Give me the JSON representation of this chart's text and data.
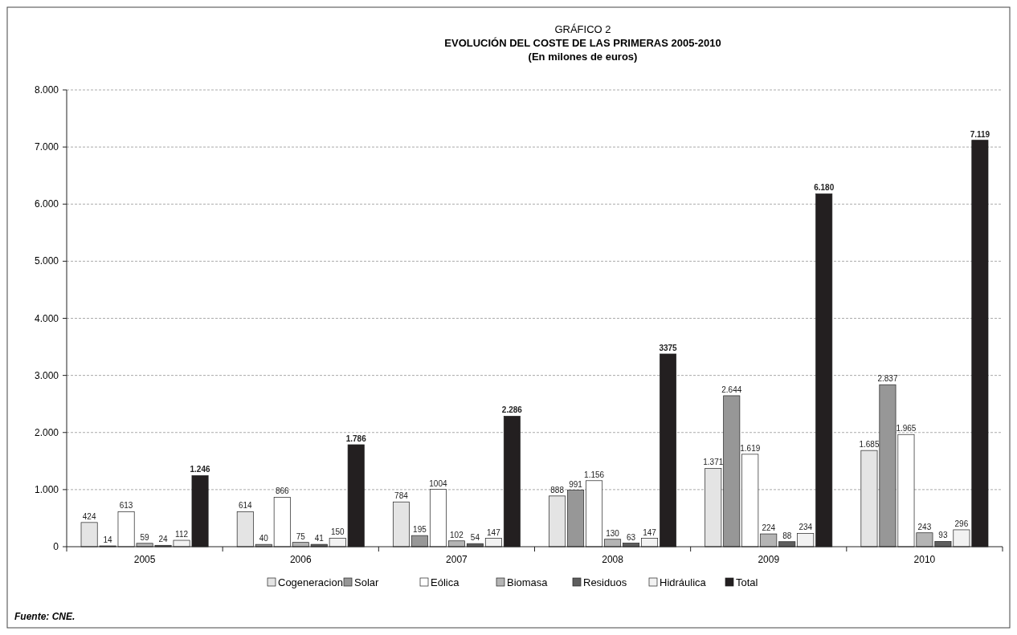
{
  "chart_data": {
    "type": "bar",
    "title": "GRÁFICO 2",
    "subtitle": "EVOLUCIÓN DEL COSTE DE LAS PRIMERAS 2005-2010\n(En milones de euros)",
    "categories": [
      "2005",
      "2006",
      "2007",
      "2008",
      "2009",
      "2010"
    ],
    "series": [
      {
        "name": "Cogeneracion",
        "color": "#e4e4e4",
        "values": [
          424,
          614,
          784,
          888,
          1371,
          1685
        ],
        "value_labels": [
          "424",
          "614",
          "784",
          "888",
          "1.371",
          "1.685"
        ]
      },
      {
        "name": "Solar",
        "color": "#979797",
        "values": [
          14,
          40,
          195,
          991,
          2644,
          2837
        ],
        "value_labels": [
          "14",
          "40",
          "195",
          "991",
          "2.644",
          "2.837"
        ]
      },
      {
        "name": "Eólica",
        "color": "#ffffff",
        "values": [
          613,
          866,
          1004,
          1156,
          1619,
          1965
        ],
        "value_labels": [
          "613",
          "866",
          "1004",
          "1.156",
          "1.619",
          "1.965"
        ]
      },
      {
        "name": "Biomasa",
        "color": "#b4b4b4",
        "values": [
          59,
          75,
          102,
          130,
          224,
          243
        ],
        "value_labels": [
          "59",
          "75",
          "102",
          "130",
          "224",
          "243"
        ]
      },
      {
        "name": "Residuos",
        "color": "#5e5e5e",
        "values": [
          24,
          41,
          54,
          63,
          88,
          93
        ],
        "value_labels": [
          "24",
          "41",
          "54",
          "63",
          "88",
          "93"
        ]
      },
      {
        "name": "Hidráulica",
        "color": "#f2f2f2",
        "values": [
          112,
          150,
          147,
          147,
          234,
          296
        ],
        "value_labels": [
          "112",
          "150",
          "147",
          "147",
          "234",
          "296"
        ]
      },
      {
        "name": "Total",
        "color": "#231f20",
        "values": [
          1246,
          1786,
          2286,
          3375,
          6180,
          7119
        ],
        "value_labels": [
          "1.246",
          "1.786",
          "2.286",
          "3375",
          "6.180",
          "7.119"
        ]
      }
    ],
    "ylim": [
      0,
      8000
    ],
    "yticks": [
      {
        "value": 0,
        "label": "0"
      },
      {
        "value": 1000,
        "label": "1.000"
      },
      {
        "value": 2000,
        "label": "2.000"
      },
      {
        "value": 3000,
        "label": "3.000"
      },
      {
        "value": 4000,
        "label": "4.000"
      },
      {
        "value": 5000,
        "label": "5.000"
      },
      {
        "value": 6000,
        "label": "6.000"
      },
      {
        "value": 7000,
        "label": "7.000"
      },
      {
        "value": 8000,
        "label": "8.000"
      }
    ],
    "grid": "y",
    "legend": "bottom",
    "annotations": [
      "Fuente: CNE."
    ]
  }
}
